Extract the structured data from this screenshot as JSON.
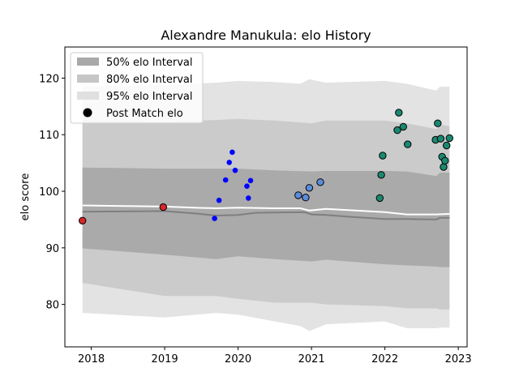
{
  "chart_data": {
    "type": "scatter",
    "title": "Alexandre Manukula: elo History",
    "xlabel": "",
    "ylabel": "elo score",
    "xlim": [
      2017.64,
      2023.12
    ],
    "ylim": [
      72.5,
      125.5
    ],
    "xticks": [
      2018,
      2019,
      2020,
      2021,
      2022,
      2023
    ],
    "xtick_labels": [
      "2018",
      "2019",
      "2020",
      "2021",
      "2022",
      "2023"
    ],
    "yticks": [
      80,
      90,
      100,
      110,
      120
    ],
    "ytick_labels": [
      "80",
      "90",
      "100",
      "110",
      "120"
    ],
    "grid": false,
    "legend": {
      "placement": "top-left",
      "entries": [
        {
          "label": "50% elo Interval",
          "kind": "band",
          "color": "#a9a9a9"
        },
        {
          "label": "80% elo Interval",
          "kind": "band",
          "color": "#c6c6c6"
        },
        {
          "label": "95% elo Interval",
          "kind": "band",
          "color": "#e0e0e0"
        },
        {
          "label": "Post Match elo",
          "kind": "marker",
          "color": "#000000"
        }
      ]
    },
    "bands": [
      {
        "name": "95% elo Interval",
        "color": "#e3e3e3",
        "x": [
          2017.88,
          2019.0,
          2019.7,
          2020.0,
          2020.5,
          2020.85,
          2020.97,
          2021.2,
          2022.0,
          2022.3,
          2022.7,
          2022.75,
          2022.88
        ],
        "upper": [
          118.5,
          118.8,
          119.2,
          119.5,
          119.3,
          119.0,
          119.8,
          119.2,
          119.5,
          119.0,
          117.8,
          118.5,
          118.5
        ],
        "lower": [
          78.5,
          77.7,
          78.5,
          78.2,
          77.0,
          76.2,
          75.3,
          76.5,
          77.0,
          75.8,
          75.8,
          75.9,
          75.9
        ]
      },
      {
        "name": "80% elo Interval",
        "color": "#cbcbcb",
        "x": [
          2017.88,
          2019.0,
          2019.7,
          2020.0,
          2020.5,
          2021.0,
          2021.2,
          2022.0,
          2022.3,
          2022.7,
          2022.75,
          2022.88
        ],
        "upper": [
          112.5,
          112.3,
          112.6,
          112.8,
          112.5,
          112.0,
          112.5,
          112.5,
          112.0,
          111.0,
          111.8,
          111.5
        ],
        "lower": [
          83.8,
          81.5,
          81.5,
          81.0,
          80.3,
          80.3,
          80.0,
          79.7,
          79.3,
          79.3,
          79.1,
          79.1
        ]
      },
      {
        "name": "50% elo Interval",
        "color": "#aaaaaa",
        "x": [
          2017.88,
          2019.0,
          2019.7,
          2020.0,
          2020.5,
          2021.0,
          2021.2,
          2022.0,
          2022.3,
          2022.7,
          2022.75,
          2022.88
        ],
        "upper": [
          104.2,
          104.0,
          104.0,
          104.0,
          103.7,
          103.5,
          103.6,
          103.6,
          103.5,
          102.7,
          103.3,
          103.3
        ],
        "lower": [
          89.9,
          88.8,
          88.0,
          88.5,
          88.0,
          87.6,
          87.9,
          87.1,
          86.9,
          86.7,
          86.6,
          86.6
        ]
      }
    ],
    "lines": [
      {
        "name": "median",
        "color": "#7f7f7f",
        "x": [
          2017.88,
          2019.0,
          2019.4,
          2019.7,
          2020.0,
          2020.25,
          2020.9,
          2021.0,
          2021.2,
          2021.5,
          2022.0,
          2022.3,
          2022.7,
          2022.75,
          2022.88
        ],
        "y": [
          96.4,
          96.5,
          96.1,
          95.7,
          95.8,
          96.2,
          96.3,
          95.9,
          95.8,
          95.5,
          95.1,
          95.1,
          95.0,
          95.3,
          95.3
        ]
      },
      {
        "name": "mean",
        "color": "#ffffff",
        "x": [
          2017.88,
          2019.0,
          2019.4,
          2019.7,
          2020.0,
          2020.5,
          2020.85,
          2020.97,
          2021.2,
          2021.6,
          2022.0,
          2022.3,
          2022.7,
          2022.88
        ],
        "y": [
          97.5,
          97.3,
          97.1,
          97.0,
          97.1,
          97.0,
          97.0,
          96.6,
          96.9,
          96.6,
          96.3,
          95.9,
          95.9,
          96.0
        ]
      }
    ],
    "series": [
      {
        "color": "#d62728",
        "edge": "#000000",
        "points": [
          [
            2017.88,
            94.8
          ],
          [
            2018.98,
            97.2
          ]
        ]
      },
      {
        "color": "#0000ff",
        "edge": "none",
        "points": [
          [
            2019.68,
            95.2
          ],
          [
            2019.74,
            98.4
          ],
          [
            2019.83,
            102.0
          ],
          [
            2019.88,
            105.1
          ],
          [
            2019.92,
            106.9
          ],
          [
            2019.96,
            103.7
          ],
          [
            2020.12,
            100.9
          ],
          [
            2020.14,
            98.8
          ],
          [
            2020.17,
            101.9
          ]
        ]
      },
      {
        "color": "#5b8cdc",
        "edge": "#000000",
        "points": [
          [
            2020.82,
            99.3
          ],
          [
            2020.92,
            98.9
          ],
          [
            2020.97,
            100.6
          ],
          [
            2021.12,
            101.6
          ]
        ]
      },
      {
        "color": "#1a8870",
        "edge": "#000000",
        "points": [
          [
            2021.93,
            98.8
          ],
          [
            2021.95,
            102.9
          ],
          [
            2021.97,
            106.3
          ],
          [
            2022.17,
            110.8
          ],
          [
            2022.19,
            113.9
          ],
          [
            2022.25,
            111.4
          ],
          [
            2022.31,
            108.3
          ],
          [
            2022.69,
            109.1
          ],
          [
            2022.72,
            112.0
          ],
          [
            2022.76,
            109.3
          ],
          [
            2022.78,
            106.1
          ],
          [
            2022.8,
            104.3
          ],
          [
            2022.82,
            105.4
          ],
          [
            2022.84,
            108.1
          ],
          [
            2022.88,
            109.4
          ]
        ]
      }
    ]
  }
}
